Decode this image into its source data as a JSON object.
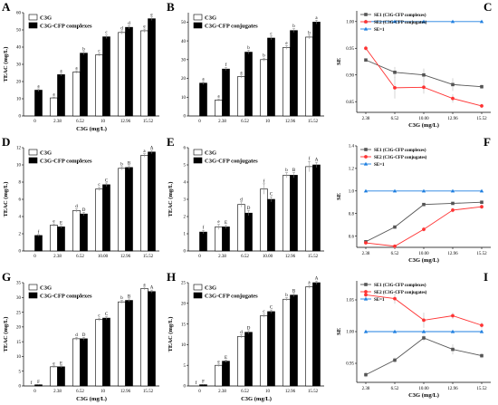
{
  "colors": {
    "se1": "#555555",
    "se2": "#ff3333",
    "ref": "#1f7fe0",
    "bar_dark": "#000000",
    "bar_light": "#ffffff"
  },
  "chart_data": [
    {
      "id": "A",
      "type": "bar",
      "ylabel": "TEAC (mg/L)",
      "xlabel": "C3G (mg/L)",
      "ylim": [
        0,
        60
      ],
      "yticks": [
        0,
        10,
        20,
        30,
        40,
        50,
        60
      ],
      "categories": [
        "0",
        "2.38",
        "6.52",
        "10",
        "12.96",
        "15.52"
      ],
      "series": [
        {
          "name": "C3G",
          "values": [
            null,
            10.5,
            25.5,
            35.5,
            48.5,
            49.5
          ],
          "err": [
            0,
            0.5,
            0.8,
            0.8,
            1.0,
            1.0
          ],
          "labels": [
            "",
            "a",
            "a",
            "c",
            "d",
            "e"
          ]
        },
        {
          "name": "C3G-CFP complexes",
          "values": [
            15,
            24,
            36.5,
            46,
            51.5,
            56.5
          ],
          "err": [
            0.8,
            0.8,
            1.0,
            1.0,
            1.0,
            1.0
          ],
          "labels": [
            "a",
            "a",
            "b",
            "c",
            "d",
            "e"
          ]
        }
      ]
    },
    {
      "id": "B",
      "type": "bar",
      "ylabel": "",
      "xlabel": "",
      "ylim": [
        0,
        55
      ],
      "yticks": [
        0,
        10,
        20,
        30,
        40,
        50
      ],
      "categories": [
        "0",
        "2.38",
        "6.52",
        "10",
        "12.96",
        "15.52"
      ],
      "series": [
        {
          "name": "C3G",
          "values": [
            null,
            8.5,
            21,
            30,
            36.5,
            42
          ],
          "err": [
            0,
            0.6,
            0.8,
            0.8,
            1.0,
            1.0
          ],
          "labels": [
            "",
            "a",
            "a",
            "b",
            "e",
            "b"
          ]
        },
        {
          "name": "C3G-CFP conjugates",
          "values": [
            17.5,
            25,
            34,
            41.5,
            45.5,
            50
          ],
          "err": [
            0.8,
            0.8,
            1.0,
            1.0,
            1.0,
            1.0
          ],
          "labels": [
            "a",
            "f",
            "b",
            "c",
            "b",
            "a"
          ]
        }
      ]
    },
    {
      "id": "C",
      "type": "line",
      "ylabel": "SE",
      "xlabel": "C3G (mg/L)",
      "ylim": [
        0.83,
        1.02
      ],
      "yticks": [
        0.85,
        0.9,
        0.95,
        1.0
      ],
      "ytick_labels": [
        "0.85",
        "0.90",
        "0.95",
        "1.00"
      ],
      "categories": [
        "2.38",
        "6.52",
        "10.00",
        "12.96",
        "15.52"
      ],
      "series": [
        {
          "name": "SE1 (C3G-CFP complexes)",
          "color_key": "se1",
          "marker": "square",
          "values": [
            0.928,
            0.905,
            0.9,
            0.882,
            0.878
          ],
          "err": [
            0.003,
            0.01,
            0.012,
            0.012,
            0.004
          ]
        },
        {
          "name": "SE2 (C3G-CFP conjugates)",
          "color_key": "se2",
          "marker": "circle",
          "values": [
            0.95,
            0.876,
            0.877,
            0.856,
            0.842
          ],
          "err": [
            0.005,
            0.02,
            0.012,
            0.008,
            0.004
          ]
        },
        {
          "name": "SE=1",
          "color_key": "ref",
          "marker": "triangle",
          "values": [
            1,
            1,
            1,
            1,
            1
          ],
          "err": [
            0,
            0,
            0,
            0,
            0
          ]
        }
      ]
    },
    {
      "id": "D",
      "type": "bar",
      "ylabel": "TEAC (mg/L)",
      "xlabel": "",
      "ylim": [
        0,
        12
      ],
      "yticks": [
        0,
        2,
        4,
        6,
        8,
        10,
        12
      ],
      "categories": [
        "0",
        "2.38",
        "6.52",
        "10.00",
        "12.96",
        "15.52"
      ],
      "series": [
        {
          "name": "C3G",
          "values": [
            null,
            3,
            4.7,
            7.2,
            9.6,
            11.1
          ],
          "err": [
            0,
            0.15,
            0.2,
            0.2,
            0.2,
            0.2
          ],
          "labels": [
            "",
            "e",
            "d",
            "c",
            "b",
            "a"
          ]
        },
        {
          "name": "C3G-CFP complexes",
          "values": [
            1.8,
            2.8,
            4.3,
            7.7,
            9.7,
            11.5
          ],
          "err": [
            0.1,
            0.15,
            0.2,
            0.2,
            0.2,
            0.2
          ],
          "labels": [
            "f",
            "E",
            "D",
            "C",
            "B",
            "A"
          ]
        }
      ]
    },
    {
      "id": "E",
      "type": "bar",
      "ylabel": "TEAC (mg/L)",
      "xlabel": "",
      "ylim": [
        0,
        6
      ],
      "yticks": [
        0,
        1,
        2,
        3,
        4,
        5,
        6
      ],
      "categories": [
        "0",
        "2.38",
        "6.52",
        "10.00",
        "12.96",
        "15.52"
      ],
      "series": [
        {
          "name": "C3G",
          "values": [
            null,
            1.4,
            2.7,
            3.6,
            4.4,
            4.9
          ],
          "err": [
            0,
            0.15,
            0.15,
            0.3,
            0.15,
            0.3
          ],
          "labels": [
            "",
            "e",
            "d",
            "f",
            "b",
            "f"
          ]
        },
        {
          "name": "C3G-CFP conjugates",
          "values": [
            1.1,
            1.4,
            2.2,
            3.0,
            4.4,
            5.0
          ],
          "err": [
            0.1,
            0.1,
            0.15,
            0.15,
            0.15,
            0.15
          ],
          "labels": [
            "f",
            "E",
            "D",
            "C",
            "B",
            "A"
          ]
        }
      ]
    },
    {
      "id": "F",
      "type": "line",
      "ylabel": "SE",
      "xlabel": "C3G (mg/L)",
      "ylim": [
        0.5,
        1.4
      ],
      "yticks": [
        0.6,
        0.8,
        1.0,
        1.2,
        1.4
      ],
      "ytick_labels": [
        "0.6",
        "0.8",
        "1.0",
        "1.2",
        "1.4"
      ],
      "categories": [
        "2.38",
        "6.52",
        "10.00",
        "12.96",
        "15.52"
      ],
      "series": [
        {
          "name": "SE1 (C3G-CFP complexes)",
          "color_key": "se1",
          "marker": "square",
          "values": [
            0.55,
            0.68,
            0.88,
            0.89,
            0.9
          ],
          "err": [
            0.01,
            0.01,
            0.01,
            0.01,
            0.01
          ]
        },
        {
          "name": "SE2 (C3G-CFP conjugates)",
          "color_key": "se2",
          "marker": "circle",
          "values": [
            0.54,
            0.51,
            0.66,
            0.83,
            0.86
          ],
          "err": [
            0.01,
            0.01,
            0.02,
            0.02,
            0.02
          ]
        },
        {
          "name": "SE=1",
          "color_key": "ref",
          "marker": "triangle",
          "values": [
            1,
            1,
            1,
            1,
            1
          ],
          "err": [
            0,
            0,
            0,
            0,
            0
          ]
        }
      ]
    },
    {
      "id": "G",
      "type": "bar",
      "ylabel": "TEAC (mg/L)",
      "xlabel": "C3G (mg/L)",
      "ylim": [
        0,
        35
      ],
      "yticks": [
        0,
        5,
        10,
        15,
        20,
        25,
        30,
        35
      ],
      "categories": [
        "0",
        "2.38",
        "6.52",
        "10",
        "12.96",
        "15.52"
      ],
      "series": [
        {
          "name": "C3G",
          "values": [
            null,
            6.5,
            16,
            22.5,
            28.5,
            33
          ],
          "err": [
            0,
            0.3,
            0.5,
            0.5,
            0.5,
            0.5
          ],
          "labels": [
            "f",
            "e",
            "d",
            "c",
            "b",
            "a"
          ]
        },
        {
          "name": "C3G-CFP complexes",
          "values": [
            0.4,
            6.5,
            16,
            23,
            29,
            32
          ],
          "err": [
            0.1,
            0.3,
            0.5,
            0.5,
            0.5,
            0.5
          ],
          "labels": [
            "F",
            "E",
            "D",
            "C",
            "B",
            "A"
          ]
        }
      ]
    },
    {
      "id": "H",
      "type": "bar",
      "ylabel": "TEAC (mg/L)",
      "xlabel": "C3G (mg/L)",
      "ylim": [
        0,
        25
      ],
      "yticks": [
        0,
        5,
        10,
        15,
        20,
        25
      ],
      "categories": [
        "0",
        "2.38",
        "6.52",
        "10",
        "12.96",
        "15.52"
      ],
      "series": [
        {
          "name": "C3G",
          "values": [
            null,
            5,
            12,
            17,
            21,
            24
          ],
          "err": [
            0,
            0.3,
            0.4,
            0.4,
            0.4,
            0.4
          ],
          "labels": [
            "f",
            "e",
            "d",
            "c",
            "b",
            "a"
          ]
        },
        {
          "name": "C3G-CFP conjugates",
          "values": [
            0.3,
            6,
            13,
            18,
            22,
            25
          ],
          "err": [
            0.1,
            0.3,
            0.4,
            0.4,
            0.4,
            0.4
          ],
          "labels": [
            "F",
            "E",
            "D",
            "C",
            "B",
            "A"
          ]
        }
      ]
    },
    {
      "id": "I",
      "type": "line",
      "ylabel": "SE",
      "xlabel": "C3G (mg/L)",
      "ylim": [
        0.92,
        1.08
      ],
      "yticks": [
        0.95,
        1.0,
        1.05
      ],
      "ytick_labels": [
        "0.95",
        "1.00",
        "1.05"
      ],
      "categories": [
        "2.38",
        "6.52",
        "10.00",
        "12.96",
        "15.52"
      ],
      "series": [
        {
          "name": "SE1 (C3G-CFP complexes)",
          "color_key": "se1",
          "marker": "square",
          "values": [
            0.932,
            0.955,
            0.99,
            0.972,
            0.962
          ],
          "err": [
            0.004,
            0.004,
            0.005,
            0.008,
            0.004
          ]
        },
        {
          "name": "SE2 (C3G-CFP conjugates)",
          "color_key": "se2",
          "marker": "circle",
          "values": [
            1.058,
            1.052,
            1.018,
            1.025,
            1.01
          ],
          "err": [
            0.008,
            0.008,
            0.012,
            0.005,
            0.005
          ]
        },
        {
          "name": "SE=1",
          "color_key": "ref",
          "marker": "triangle",
          "values": [
            1,
            1,
            1,
            1,
            1
          ],
          "err": [
            0,
            0,
            0,
            0,
            0
          ]
        }
      ]
    }
  ]
}
